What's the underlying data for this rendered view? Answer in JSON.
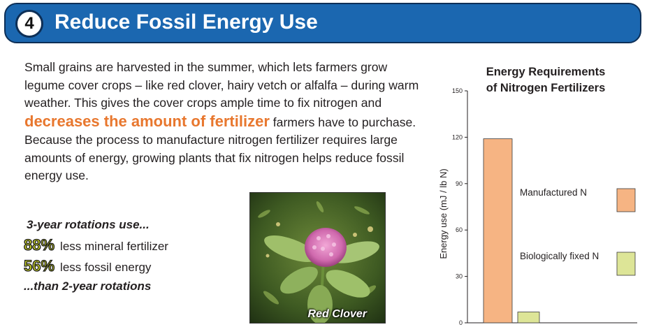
{
  "header": {
    "number": "4",
    "title": "Reduce Fossil Energy Use"
  },
  "body": {
    "text_before": "Small grains are harvested in the summer, which lets farmers grow legume cover crops – like red clover, hairy vetch or alfalfa – during warm weather. This gives the cover crops ample time to fix nitrogen and ",
    "highlight": "decreases the amount of fertilizer",
    "text_after": " farmers have to purchase. Because the process to manufacture nitrogen fertilizer requires large amounts of energy, growing plants that fix nitrogen helps reduce fossil energy use."
  },
  "stats": {
    "heading": "3-year rotations use...",
    "items": [
      {
        "pct": "88%",
        "label": "less mineral fertilizer"
      },
      {
        "pct": "56%",
        "label": "less fossil energy"
      }
    ],
    "footer": "...than 2-year rotations"
  },
  "photo": {
    "caption": "Red Clover",
    "icon": "red-clover-photo"
  },
  "chart_data": {
    "type": "bar",
    "title": "Energy Requirements of Nitrogen Fertilizers",
    "title_lines": [
      "Energy Requirements",
      "of Nitrogen Fertilizers"
    ],
    "ylabel": "Energy use (mJ / lb N)",
    "xlabel": "",
    "ylim": [
      0,
      150
    ],
    "yticks": [
      0,
      30,
      60,
      90,
      120,
      150
    ],
    "categories": [
      "Manufactured N",
      "Biologically fixed N"
    ],
    "values": [
      119,
      7
    ],
    "colors": [
      "#f6b483",
      "#dde597"
    ],
    "legend_position": "right",
    "grid": false
  }
}
